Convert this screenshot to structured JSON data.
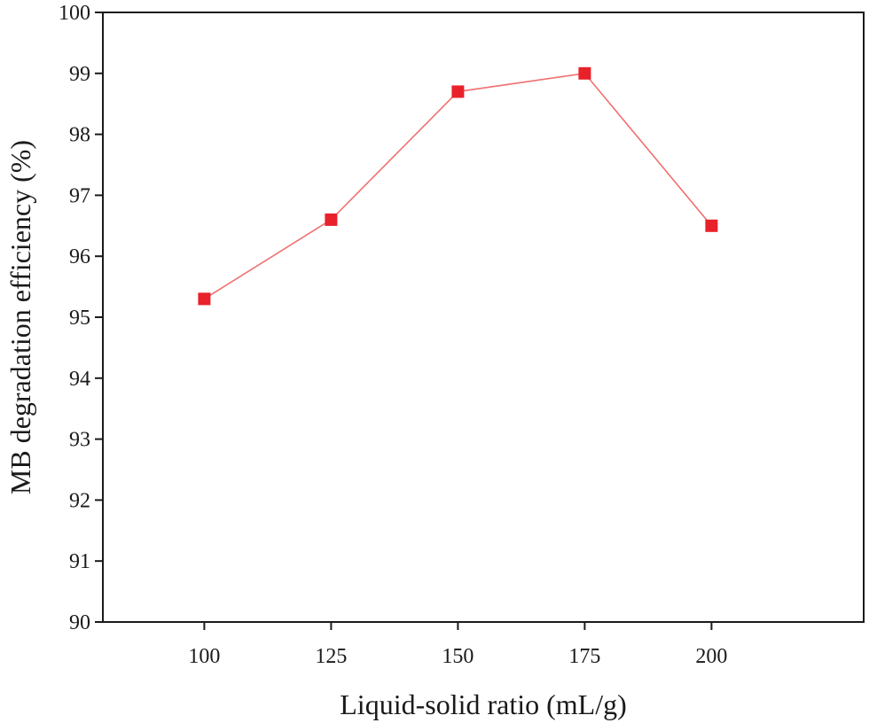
{
  "chart_data": {
    "type": "line",
    "title": "",
    "xlabel": "Liquid-solid ratio (mL/g)",
    "ylabel": "MB degradation efficiency (%)",
    "x": [
      100,
      125,
      150,
      175,
      200
    ],
    "series": [
      {
        "name": "MB degradation efficiency",
        "values": [
          95.3,
          96.6,
          98.7,
          99.0,
          96.5
        ],
        "color": "#e8212a",
        "line_color": "#f07070",
        "marker": "square"
      }
    ],
    "xlim": [
      80,
      230
    ],
    "ylim": [
      90,
      100
    ],
    "xticks": [
      "100",
      "125",
      "150",
      "175",
      "200"
    ],
    "yticks": [
      "90",
      "91",
      "92",
      "93",
      "94",
      "95",
      "96",
      "97",
      "98",
      "99",
      "100"
    ],
    "grid": false,
    "legend": false
  }
}
